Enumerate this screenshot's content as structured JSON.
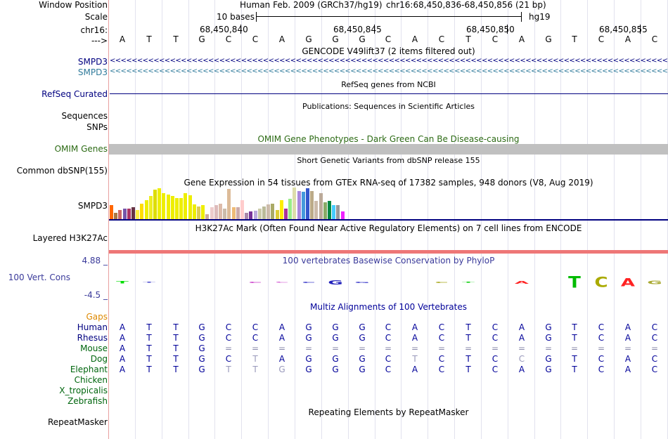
{
  "labels": {
    "window_position": "Window Position",
    "scale": "Scale",
    "chrom": "chr16:",
    "strand": "--->",
    "smpd3_a": "SMPD3",
    "smpd3_b": "SMPD3",
    "refseq": "RefSeq Curated",
    "sequences": "Sequences",
    "snps": "SNPs",
    "omim": "OMIM Genes",
    "common_snp": "Common dbSNP(155)",
    "smpd3_expr": "SMPD3",
    "h3k27ac": "Layered H3K27Ac",
    "phylop_max": "4.88 _",
    "cons": "100 Vert. Cons",
    "phylop_min": "-4.5 _",
    "gaps": "Gaps",
    "human": "Human",
    "rhesus": "Rhesus",
    "mouse": "Mouse",
    "dog": "Dog",
    "elephant": "Elephant",
    "chicken": "Chicken",
    "xtrop": "X_tropicalis",
    "zebrafish": "Zebrafish",
    "repeatmasker": "RepeatMasker"
  },
  "header": {
    "assembly": "Human Feb. 2009 (GRCh37/hg19)",
    "position": "chr16:68,450,836-68,450,856 (21 bp)",
    "scale_text": "10 bases",
    "scale_db": "hg19",
    "ticks": [
      {
        "label": "68,450,840",
        "index": 4
      },
      {
        "label": "68,450,845",
        "index": 9
      },
      {
        "label": "68,450,850",
        "index": 14
      },
      {
        "label": "68,450,855",
        "index": 19
      }
    ]
  },
  "track_titles": {
    "gencode": "GENCODE V49lift37 (2 items filtered out)",
    "refseq": "RefSeq genes from NCBI",
    "publications": "Publications: Sequences in Scientific Articles",
    "omim": "OMIM Gene Phenotypes - Dark Green Can Be Disease-causing",
    "dbsnp": "Short Genetic Variants from dbSNP release 155",
    "gtex": "Gene Expression in 54 tissues from GTEx RNA-seq of 17382 samples, 948 donors (V8, Aug 2019)",
    "h3k27ac": "H3K27Ac Mark (Often Found Near Active Regulatory Elements) on 7 cell lines from ENCODE",
    "phylop": "100 vertebrates Basewise Conservation by PhyloP",
    "multiz": "Multiz Alignments of 100 Vertebrates",
    "repeatmasker": "Repeating Elements by RepeatMasker"
  },
  "bases": [
    "A",
    "T",
    "T",
    "G",
    "C",
    "C",
    "A",
    "G",
    "G",
    "G",
    "C",
    "A",
    "C",
    "T",
    "C",
    "A",
    "G",
    "T",
    "C",
    "A",
    "C"
  ],
  "alignment": {
    "Human": [
      "A",
      "T",
      "T",
      "G",
      "C",
      "C",
      "A",
      "G",
      "G",
      "G",
      "C",
      "A",
      "C",
      "T",
      "C",
      "A",
      "G",
      "T",
      "C",
      "A",
      "C"
    ],
    "Rhesus": [
      "A",
      "T",
      "T",
      "G",
      "C",
      "C",
      "A",
      "G",
      "G",
      "G",
      "C",
      "A",
      "C",
      "T",
      "C",
      "A",
      "G",
      "T",
      "C",
      "A",
      "C"
    ],
    "Mouse": [
      "A",
      "T",
      "T",
      "G",
      "=",
      "=",
      "=",
      "=",
      "=",
      "=",
      "=",
      "=",
      "=",
      "=",
      "=",
      "=",
      "=",
      "=",
      "=",
      "=",
      "="
    ],
    "Dog": [
      "A",
      "T",
      "T",
      "G",
      "C",
      "T",
      "A",
      "G",
      "G",
      "G",
      "C",
      "T",
      "C",
      "T",
      "C",
      "C",
      "G",
      "T",
      "C",
      "A",
      "C"
    ],
    "Elephant": [
      "A",
      "T",
      "T",
      "G",
      "T",
      "T",
      "G",
      "G",
      "G",
      "G",
      "C",
      "A",
      "C",
      "T",
      "C",
      "A",
      "G",
      "T",
      "C",
      "A",
      "C"
    ]
  },
  "conservation": [
    {
      "base": "T",
      "score": 0.3,
      "color": "#00dd00"
    },
    {
      "base": "T",
      "score": 0.1,
      "color": "#4444cc"
    },
    {
      "base": "",
      "score": 0,
      "color": "#000000"
    },
    {
      "base": "",
      "score": 0,
      "color": "#000000"
    },
    {
      "base": "",
      "score": 0,
      "color": "#000000"
    },
    {
      "base": "C",
      "score": -0.2,
      "color": "#cc44cc"
    },
    {
      "base": "C",
      "score": 0.1,
      "color": "#cc44cc"
    },
    {
      "base": "C",
      "score": 0.2,
      "color": "#4444cc"
    },
    {
      "base": "G",
      "score": 0.6,
      "color": "#2222bb"
    },
    {
      "base": "G",
      "score": 0.2,
      "color": "#4444cc"
    },
    {
      "base": "",
      "score": 0,
      "color": "#000000"
    },
    {
      "base": "",
      "score": 0,
      "color": "#000000"
    },
    {
      "base": "C",
      "score": 0.2,
      "color": "#aaaa22"
    },
    {
      "base": "T",
      "score": 0.1,
      "color": "#00cc00"
    },
    {
      "base": "",
      "score": 0,
      "color": "#000000"
    },
    {
      "base": "A",
      "score": 0.4,
      "color": "#ff2222"
    },
    {
      "base": "",
      "score": 0,
      "color": "#000000"
    },
    {
      "base": "T",
      "score": 1.6,
      "color": "#00bb00"
    },
    {
      "base": "C",
      "score": 1.4,
      "color": "#aaaa00"
    },
    {
      "base": "A",
      "score": 1.2,
      "color": "#ff2222"
    },
    {
      "base": "G",
      "score": 0.5,
      "color": "#aaaa33"
    }
  ],
  "gtex_bars": [
    {
      "value": 0.45,
      "color": "#ff6600"
    },
    {
      "value": 0.2,
      "color": "#aa7744"
    },
    {
      "value": 0.3,
      "color": "#cc6666"
    },
    {
      "value": 0.35,
      "color": "#7755aa"
    },
    {
      "value": 0.35,
      "color": "#aa3366"
    },
    {
      "value": 0.38,
      "color": "#663344"
    },
    {
      "value": 0.3,
      "color": "#ffee44"
    },
    {
      "value": 0.5,
      "color": "#ffdd00"
    },
    {
      "value": 0.62,
      "color": "#eeee00"
    },
    {
      "value": 0.75,
      "color": "#eeee22"
    },
    {
      "value": 0.95,
      "color": "#dddd00"
    },
    {
      "value": 1.0,
      "color": "#eeee00"
    },
    {
      "value": 0.85,
      "color": "#eeee00"
    },
    {
      "value": 0.8,
      "color": "#eeee00"
    },
    {
      "value": 0.75,
      "color": "#eeee00"
    },
    {
      "value": 0.68,
      "color": "#eeee00"
    },
    {
      "value": 0.68,
      "color": "#eeee00"
    },
    {
      "value": 0.84,
      "color": "#eeee00"
    },
    {
      "value": 0.78,
      "color": "#eeee00"
    },
    {
      "value": 0.48,
      "color": "#eeee00"
    },
    {
      "value": 0.4,
      "color": "#ddcc55"
    },
    {
      "value": 0.45,
      "color": "#eeee00"
    },
    {
      "value": 0.15,
      "color": "#ccaa99"
    },
    {
      "value": 0.38,
      "color": "#eecccc"
    },
    {
      "value": 0.45,
      "color": "#ddbbbb"
    },
    {
      "value": 0.5,
      "color": "#ddbbaa"
    },
    {
      "value": 0.35,
      "color": "#ccbbaa"
    },
    {
      "value": 0.98,
      "color": "#ddbb99"
    },
    {
      "value": 0.38,
      "color": "#eebb77"
    },
    {
      "value": 0.38,
      "color": "#ccaaaa"
    },
    {
      "value": 0.62,
      "color": "#ffcccc"
    },
    {
      "value": 0.2,
      "color": "#aa88aa"
    },
    {
      "value": 0.25,
      "color": "#773399"
    },
    {
      "value": 0.28,
      "color": "#bbaadd"
    },
    {
      "value": 0.35,
      "color": "#ccccaa"
    },
    {
      "value": 0.4,
      "color": "#bbbb99"
    },
    {
      "value": 0.48,
      "color": "#ccbbaa"
    },
    {
      "value": 0.5,
      "color": "#aaaa66"
    },
    {
      "value": 0.3,
      "color": "#ddcc33"
    },
    {
      "value": 0.62,
      "color": "#ffee00"
    },
    {
      "value": 0.35,
      "color": "#aa3399"
    },
    {
      "value": 0.65,
      "color": "#99ee88"
    },
    {
      "value": 1.02,
      "color": "#ddddaa"
    },
    {
      "value": 0.92,
      "color": "#aa88dd"
    },
    {
      "value": 0.88,
      "color": "#4499dd"
    },
    {
      "value": 1.0,
      "color": "#3355cc"
    },
    {
      "value": 0.92,
      "color": "#bbaa88"
    },
    {
      "value": 0.58,
      "color": "#ccbbaa"
    },
    {
      "value": 0.85,
      "color": "#bbaa99"
    },
    {
      "value": 0.55,
      "color": "#88aa66"
    },
    {
      "value": 0.58,
      "color": "#008844"
    },
    {
      "value": 0.45,
      "color": "#44ccff"
    },
    {
      "value": 0.45,
      "color": "#999999"
    },
    {
      "value": 0.25,
      "color": "#ee22ff"
    }
  ],
  "colors": {
    "gene_blue": "#000080",
    "gencode_teal": "#307b9b",
    "omim_green": "#2d6b15",
    "omim_gray": "#c0c0c0",
    "cons_blue": "#3a3a9a",
    "multiz_blue": "#000099",
    "h3k27ac_red": "#ee7777",
    "gaps_orange": "#dd8800",
    "species_green": "#00660e"
  }
}
